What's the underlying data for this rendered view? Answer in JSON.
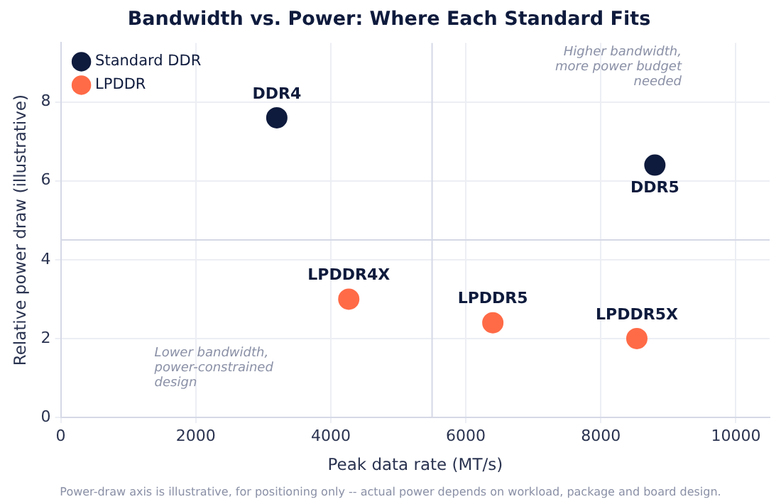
{
  "chart_data": {
    "type": "scatter",
    "title": "Bandwidth vs. Power: Where Each Standard Fits",
    "xlabel": "Peak data rate (MT/s)",
    "ylabel": "Relative power draw (illustrative)",
    "series": [
      {
        "name": "Standard DDR",
        "color": "#0f1b3d",
        "x": [
          3200,
          8800
        ],
        "values": [
          7.6,
          6.4
        ]
      },
      {
        "name": "LPDDR",
        "color": "#ff6b47",
        "x": [
          4266,
          6400,
          8533
        ],
        "values": [
          3.0,
          2.4,
          2.0
        ]
      }
    ],
    "xlim": [
      0,
      10500
    ],
    "xticks": [
      0,
      2000,
      4000,
      6000,
      8000,
      10000
    ],
    "ylim": [
      0,
      9.5
    ],
    "yticks": [
      0,
      2,
      4,
      6,
      8
    ],
    "ref_lines": [
      {
        "axis": "x",
        "value": 5500,
        "color": "#d5d9e6"
      },
      {
        "axis": "y",
        "value": 4.5,
        "color": "#d5d9e6"
      }
    ],
    "annotations": [
      "Higher bandwidth, more power budget needed",
      "Lower bandwidth, power-constrained design",
      {
        "text": "DDR4",
        "x": 3200,
        "y": 7.6
      },
      {
        "text": "DDR5",
        "x": 8800,
        "y": 6.4
      },
      {
        "text": "LPDDR4X",
        "x": 4266,
        "y": 3.0
      },
      {
        "text": "LPDDR5",
        "x": 6400,
        "y": 2.4
      },
      {
        "text": "LPDDR5X",
        "x": 8533,
        "y": 2.0
      },
      "Power-draw axis is illustrative, for positioning only -- actual power depends on workload, package and board design."
    ],
    "grid": true,
    "legend": "top left",
    "marker": "circle"
  }
}
